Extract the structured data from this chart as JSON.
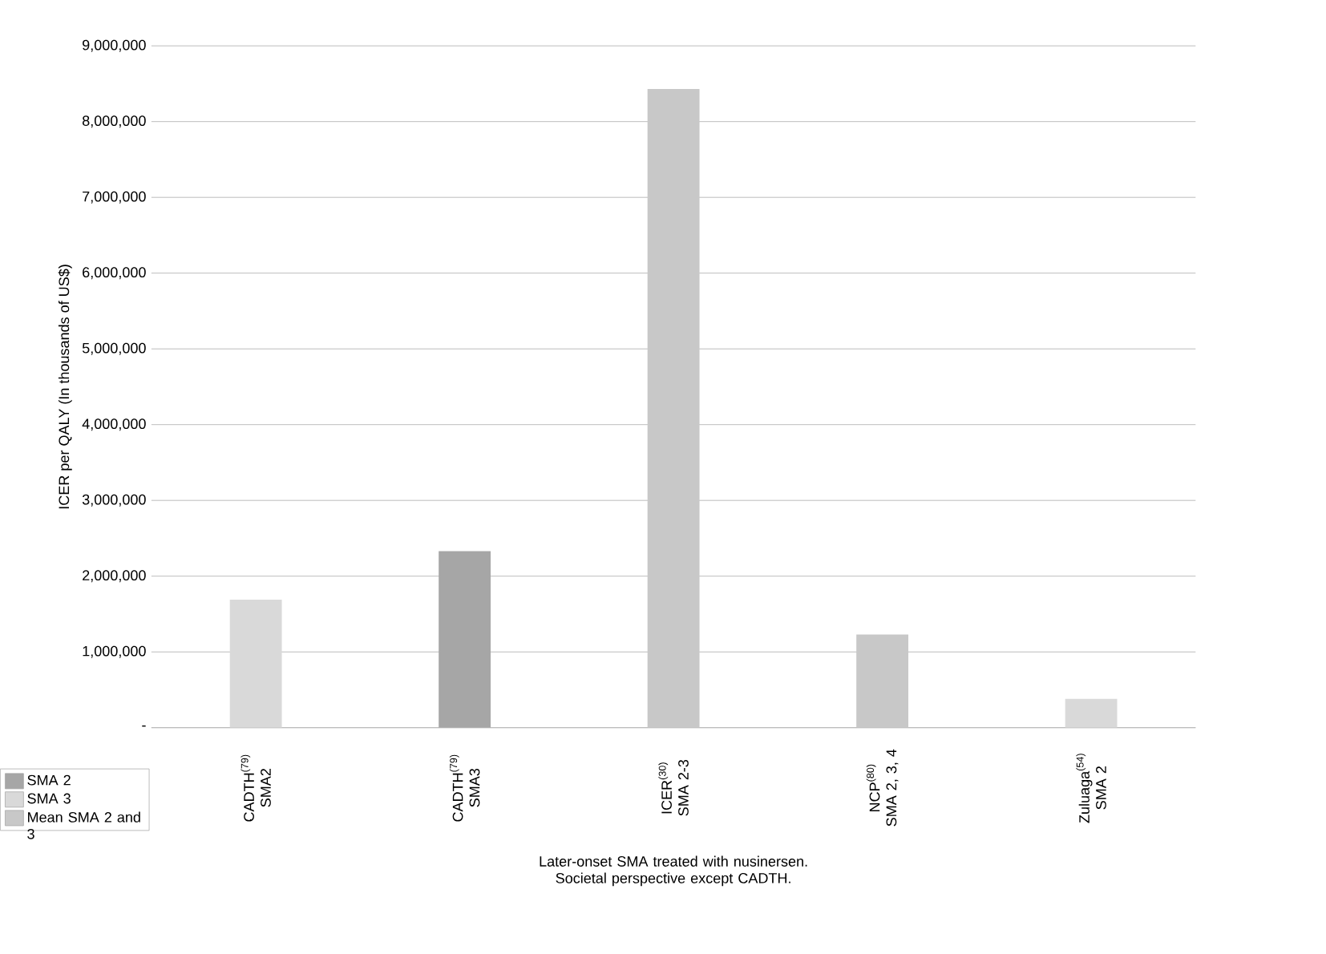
{
  "chart_data": {
    "type": "bar",
    "ylabel": "ICER per QALY (In thousands of US$)",
    "xlabel": "Later-onset SMA treated with nusinersen. Societal perspective except CADTH.",
    "categories": [
      "CADTH$^{(79)}$ SMA2",
      "CADTH$^{(79)}$ SMA3",
      "ICER$^{(30)}$ SMA 2-3",
      "NCP$^{(80)}$ SMA 2, 3, 4",
      "Zuluaga$^{(54)}$ SMA 2"
    ],
    "series": [
      {
        "name": "SMA 2",
        "color": "#a6a6a6",
        "values": [
          null,
          2330000,
          null,
          null,
          null
        ]
      },
      {
        "name": "SMA 3",
        "color": "#d9d9d9",
        "values": [
          1690000,
          null,
          null,
          null,
          380000
        ]
      },
      {
        "name": "Mean SMA 2 and 3",
        "color": "#c8c8c8",
        "values": [
          null,
          null,
          8430000,
          1230000,
          null
        ]
      }
    ],
    "ylim": [
      0,
      9000000
    ],
    "yticks": [
      {
        "value": 0,
        "label": "-"
      },
      {
        "value": 1000000,
        "label": "1,000,000"
      },
      {
        "value": 2000000,
        "label": "2,000,000"
      },
      {
        "value": 3000000,
        "label": "3,000,000"
      },
      {
        "value": 4000000,
        "label": "4,000,000"
      },
      {
        "value": 5000000,
        "label": "5,000,000"
      },
      {
        "value": 6000000,
        "label": "6,000,000"
      },
      {
        "value": 7000000,
        "label": "7,000,000"
      },
      {
        "value": 8000000,
        "label": "8,000,000"
      },
      {
        "value": 9000000,
        "label": "9,000,000"
      }
    ],
    "grid": "y",
    "legend": "bottom left"
  }
}
